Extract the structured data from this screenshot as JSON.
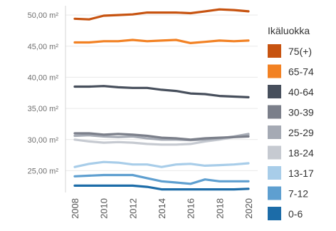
{
  "chart_data": {
    "type": "line",
    "x": [
      2008,
      2009,
      2010,
      2011,
      2012,
      2013,
      2014,
      2015,
      2016,
      2017,
      2018,
      2019,
      2020
    ],
    "x_tick_labels": [
      "2008",
      "2010",
      "2012",
      "2014",
      "2016",
      "2018",
      "2020"
    ],
    "y_tick_labels": [
      "25,00 m²",
      "30,00 m²",
      "35,00 m²",
      "40,00 m²",
      "45,00 m²",
      "50,00 m²"
    ],
    "y_ticks": [
      25,
      30,
      35,
      40,
      45,
      50
    ],
    "ylim": [
      21.5,
      51.5
    ],
    "grid": "horizontal",
    "legend": {
      "title": "Ikäluokka",
      "placement": "right"
    },
    "series": [
      {
        "name": "75(+)",
        "color": "#c75310",
        "values": [
          49.4,
          49.3,
          49.9,
          50.0,
          50.1,
          50.4,
          50.4,
          50.4,
          50.3,
          50.6,
          50.9,
          50.8,
          50.6
        ]
      },
      {
        "name": "65-74",
        "color": "#f28123",
        "values": [
          45.6,
          45.6,
          45.8,
          45.8,
          46.0,
          45.8,
          45.9,
          46.0,
          45.5,
          45.7,
          45.9,
          45.8,
          45.9
        ]
      },
      {
        "name": "40-64",
        "color": "#474f5c",
        "values": [
          38.5,
          38.5,
          38.6,
          38.4,
          38.3,
          38.3,
          38.0,
          37.8,
          37.4,
          37.3,
          37.0,
          36.9,
          36.8
        ]
      },
      {
        "name": "30-39",
        "color": "#7b7f8a",
        "values": [
          31.0,
          31.0,
          30.8,
          30.9,
          30.8,
          30.6,
          30.3,
          30.2,
          30.0,
          30.2,
          30.3,
          30.4,
          30.5
        ]
      },
      {
        "name": "25-29",
        "color": "#a5aab4",
        "values": [
          30.6,
          30.7,
          30.5,
          30.4,
          30.5,
          30.2,
          30.0,
          30.0,
          29.9,
          30.0,
          30.2,
          30.5,
          30.9
        ]
      },
      {
        "name": "18-24",
        "color": "#c6cad1",
        "values": [
          30.0,
          29.7,
          29.5,
          29.6,
          29.5,
          29.3,
          29.2,
          29.2,
          29.3,
          29.7,
          30.0,
          30.4,
          30.7
        ]
      },
      {
        "name": "13-17",
        "color": "#a8cde9",
        "values": [
          25.6,
          26.1,
          26.4,
          26.3,
          26.0,
          26.0,
          25.6,
          26.0,
          26.1,
          25.8,
          25.9,
          26.0,
          26.2
        ]
      },
      {
        "name": "7-12",
        "color": "#5e9fd0",
        "values": [
          24.1,
          24.2,
          24.3,
          24.3,
          24.3,
          23.8,
          23.3,
          23.1,
          22.9,
          23.6,
          23.3,
          23.3,
          23.3
        ]
      },
      {
        "name": "0-6",
        "color": "#1c6ca8",
        "values": [
          22.6,
          22.6,
          22.6,
          22.6,
          22.6,
          22.4,
          22.0,
          22.0,
          22.0,
          22.0,
          22.0,
          22.0,
          22.1
        ]
      }
    ]
  }
}
